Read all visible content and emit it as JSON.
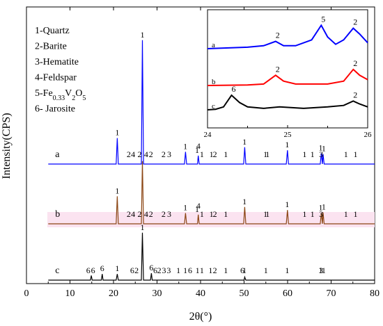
{
  "chart_data": {
    "type": "line",
    "xlabel": "2θ(°)",
    "ylabel": "Intensity(CPS)",
    "xlim": [
      0,
      80
    ],
    "xticks": [
      0,
      10,
      20,
      30,
      40,
      50,
      60,
      70,
      80
    ],
    "legend_placement": "top-left",
    "legend": [
      {
        "number": "1",
        "text": "-Quartz"
      },
      {
        "number": "2",
        "text": "-Barite"
      },
      {
        "number": "3",
        "text": "-Hematite"
      },
      {
        "number": "4",
        "text": "-Feldspar"
      },
      {
        "number": "5",
        "text": "-Fe",
        "sub1": "0.33",
        "mid": "V",
        "sub2": "2",
        "tail": "O",
        "sub3": "5"
      },
      {
        "number": "6",
        "text": "- Jarosite"
      }
    ],
    "series": [
      {
        "name": "a",
        "color": "#0000ff",
        "offset": 0.4,
        "points": [
          [
            5,
            0.5
          ],
          [
            20.6,
            0.5
          ],
          [
            20.86,
            2.2
          ],
          [
            21.1,
            0.5
          ],
          [
            26.4,
            0.5
          ],
          [
            26.64,
            8.6
          ],
          [
            26.9,
            0.5
          ],
          [
            36.3,
            0.5
          ],
          [
            36.55,
            1.3
          ],
          [
            36.8,
            0.5
          ],
          [
            39.3,
            0.5
          ],
          [
            39.47,
            1.05
          ],
          [
            39.7,
            0.5
          ],
          [
            49.9,
            0.5
          ],
          [
            50.14,
            1.6
          ],
          [
            50.4,
            0.5
          ],
          [
            59.7,
            0.5
          ],
          [
            59.96,
            1.4
          ],
          [
            60.2,
            0.5
          ],
          [
            67.5,
            0.5
          ],
          [
            67.74,
            1.2
          ],
          [
            68.0,
            0.5
          ],
          [
            68.14,
            1.15
          ],
          [
            68.4,
            0.5
          ],
          [
            80,
            0.5
          ]
        ],
        "peak_labels": [
          {
            "x": 20.86,
            "text": "1"
          },
          {
            "x": 23.5,
            "text": "2"
          },
          {
            "x": 24.5,
            "text": "4"
          },
          {
            "x": 26.0,
            "text": "2"
          },
          {
            "x": 26.64,
            "text": "1"
          },
          {
            "x": 27.5,
            "text": "4"
          },
          {
            "x": 28.6,
            "text": "2"
          },
          {
            "x": 31.5,
            "text": "2"
          },
          {
            "x": 32.8,
            "text": "3"
          },
          {
            "x": 36.5,
            "text": "1"
          },
          {
            "x": 39.2,
            "text": "1"
          },
          {
            "x": 39.5,
            "text": "4"
          },
          {
            "x": 40.3,
            "text": "1"
          },
          {
            "x": 42.5,
            "text": "1"
          },
          {
            "x": 43.3,
            "text": "2"
          },
          {
            "x": 45.8,
            "text": "1"
          },
          {
            "x": 50.1,
            "text": "1"
          },
          {
            "x": 54.9,
            "text": "1"
          },
          {
            "x": 55.4,
            "text": "1"
          },
          {
            "x": 59.9,
            "text": "1"
          },
          {
            "x": 63.9,
            "text": "1"
          },
          {
            "x": 65.7,
            "text": "1"
          },
          {
            "x": 67.6,
            "text": "1"
          },
          {
            "x": 67.7,
            "text": "3"
          },
          {
            "x": 68.3,
            "text": "1"
          },
          {
            "x": 73.4,
            "text": "1"
          },
          {
            "x": 75.6,
            "text": "1"
          }
        ]
      },
      {
        "name": "b",
        "color": "#8b4513",
        "offset": 0.05,
        "points": [
          [
            5,
            0.3
          ],
          [
            20.6,
            0.3
          ],
          [
            20.86,
            2.1
          ],
          [
            21.1,
            0.3
          ],
          [
            26.4,
            0.3
          ],
          [
            26.64,
            4.4
          ],
          [
            26.9,
            0.3
          ],
          [
            36.3,
            0.3
          ],
          [
            36.55,
            1.0
          ],
          [
            36.8,
            0.3
          ],
          [
            39.3,
            0.3
          ],
          [
            39.47,
            0.9
          ],
          [
            39.7,
            0.3
          ],
          [
            49.9,
            0.3
          ],
          [
            50.14,
            1.4
          ],
          [
            50.4,
            0.3
          ],
          [
            59.7,
            0.3
          ],
          [
            59.96,
            1.2
          ],
          [
            60.2,
            0.3
          ],
          [
            67.5,
            0.3
          ],
          [
            67.74,
            1.0
          ],
          [
            68.0,
            0.3
          ],
          [
            68.14,
            1.05
          ],
          [
            68.4,
            0.3
          ],
          [
            80,
            0.3
          ]
        ],
        "peak_labels": [
          {
            "x": 20.86,
            "text": "1"
          },
          {
            "x": 23.5,
            "text": "2"
          },
          {
            "x": 24.5,
            "text": "4"
          },
          {
            "x": 26.0,
            "text": "2"
          },
          {
            "x": 27.5,
            "text": "4"
          },
          {
            "x": 28.6,
            "text": "2"
          },
          {
            "x": 31.5,
            "text": "2"
          },
          {
            "x": 32.8,
            "text": "3"
          },
          {
            "x": 36.5,
            "text": "1"
          },
          {
            "x": 39.2,
            "text": "1"
          },
          {
            "x": 39.5,
            "text": "4"
          },
          {
            "x": 40.3,
            "text": "1"
          },
          {
            "x": 42.5,
            "text": "1"
          },
          {
            "x": 43.3,
            "text": "2"
          },
          {
            "x": 45.8,
            "text": "1"
          },
          {
            "x": 50.1,
            "text": "1"
          },
          {
            "x": 54.9,
            "text": "1"
          },
          {
            "x": 55.4,
            "text": "1"
          },
          {
            "x": 59.9,
            "text": "1"
          },
          {
            "x": 63.9,
            "text": "1"
          },
          {
            "x": 65.7,
            "text": "1"
          },
          {
            "x": 67.6,
            "text": "1"
          },
          {
            "x": 67.7,
            "text": "3"
          },
          {
            "x": 68.3,
            "text": "1"
          },
          {
            "x": 73.4,
            "text": "1"
          },
          {
            "x": 75.6,
            "text": "1"
          }
        ]
      },
      {
        "name": "c",
        "color": "#000000",
        "offset": 0.0,
        "points": [
          [
            5,
            0.05
          ],
          [
            14.7,
            0.05
          ],
          [
            14.9,
            0.35
          ],
          [
            15.1,
            0.05
          ],
          [
            17.2,
            0.05
          ],
          [
            17.4,
            0.45
          ],
          [
            17.6,
            0.05
          ],
          [
            20.6,
            0.05
          ],
          [
            20.86,
            0.45
          ],
          [
            21.1,
            0.05
          ],
          [
            26.4,
            0.05
          ],
          [
            26.64,
            3.15
          ],
          [
            26.9,
            0.05
          ],
          [
            28.5,
            0.05
          ],
          [
            28.7,
            0.5
          ],
          [
            28.9,
            0.05
          ],
          [
            50.0,
            0.05
          ],
          [
            50.14,
            0.25
          ],
          [
            50.4,
            0.05
          ],
          [
            80,
            0.05
          ]
        ],
        "peak_labels": [
          {
            "x": 14.2,
            "text": "6"
          },
          {
            "x": 15.3,
            "text": "6"
          },
          {
            "x": 17.4,
            "text": "6"
          },
          {
            "x": 20.86,
            "text": "1"
          },
          {
            "x": 24.3,
            "text": "6"
          },
          {
            "x": 25.3,
            "text": "2"
          },
          {
            "x": 26.64,
            "text": "1"
          },
          {
            "x": 28.7,
            "text": "6"
          },
          {
            "x": 29.6,
            "text": "6"
          },
          {
            "x": 30.5,
            "text": "2"
          },
          {
            "x": 31.6,
            "text": "3"
          },
          {
            "x": 32.7,
            "text": "3"
          },
          {
            "x": 34.9,
            "text": "1"
          },
          {
            "x": 36.5,
            "text": "1"
          },
          {
            "x": 37.6,
            "text": "6"
          },
          {
            "x": 39.3,
            "text": "1"
          },
          {
            "x": 40.3,
            "text": "1"
          },
          {
            "x": 42.3,
            "text": "1"
          },
          {
            "x": 43.3,
            "text": "2"
          },
          {
            "x": 45.8,
            "text": "1"
          },
          {
            "x": 49.6,
            "text": "6"
          },
          {
            "x": 50.1,
            "text": "1"
          },
          {
            "x": 55.0,
            "text": "1"
          },
          {
            "x": 59.9,
            "text": "1"
          },
          {
            "x": 67.6,
            "text": "1"
          },
          {
            "x": 67.7,
            "text": "3"
          },
          {
            "x": 68.3,
            "text": "1"
          }
        ]
      }
    ],
    "inset": {
      "xlim": [
        24,
        26
      ],
      "xticks": [
        24,
        25,
        26
      ],
      "series": [
        {
          "name": "a",
          "color": "#0000ff",
          "offset": 2.0,
          "points": [
            [
              24,
              0.0
            ],
            [
              24.5,
              0.05
            ],
            [
              24.7,
              0.1
            ],
            [
              24.85,
              0.25
            ],
            [
              24.95,
              0.1
            ],
            [
              25.1,
              0.1
            ],
            [
              25.3,
              0.3
            ],
            [
              25.42,
              0.8
            ],
            [
              25.5,
              0.4
            ],
            [
              25.6,
              0.15
            ],
            [
              25.7,
              0.3
            ],
            [
              25.82,
              0.7
            ],
            [
              25.9,
              0.5
            ],
            [
              26.0,
              0.2
            ]
          ],
          "peak_labels": [
            {
              "x": 24.85,
              "text": "2"
            },
            {
              "x": 25.42,
              "text": "5"
            },
            {
              "x": 25.82,
              "text": "2"
            }
          ]
        },
        {
          "name": "b",
          "color": "#ff0000",
          "offset": 0.9,
          "points": [
            [
              24,
              0.0
            ],
            [
              24.5,
              0.02
            ],
            [
              24.7,
              0.05
            ],
            [
              24.85,
              0.35
            ],
            [
              24.95,
              0.15
            ],
            [
              25.1,
              0.05
            ],
            [
              25.5,
              0.05
            ],
            [
              25.7,
              0.15
            ],
            [
              25.82,
              0.55
            ],
            [
              25.9,
              0.35
            ],
            [
              26.0,
              0.2
            ]
          ],
          "peak_labels": [
            {
              "x": 24.85,
              "text": "2"
            },
            {
              "x": 25.82,
              "text": "2"
            }
          ]
        },
        {
          "name": "c",
          "color": "#000000",
          "offset": 0.0,
          "points": [
            [
              24,
              0.0
            ],
            [
              24.1,
              0.02
            ],
            [
              24.2,
              0.1
            ],
            [
              24.3,
              0.5
            ],
            [
              24.4,
              0.25
            ],
            [
              24.5,
              0.1
            ],
            [
              24.7,
              0.05
            ],
            [
              24.9,
              0.1
            ],
            [
              25.2,
              0.05
            ],
            [
              25.5,
              0.1
            ],
            [
              25.7,
              0.15
            ],
            [
              25.82,
              0.3
            ],
            [
              25.9,
              0.2
            ],
            [
              26.0,
              0.1
            ]
          ],
          "peak_labels": [
            {
              "x": 24.3,
              "text": "6"
            },
            {
              "x": 25.82,
              "text": "2"
            }
          ]
        }
      ]
    }
  }
}
